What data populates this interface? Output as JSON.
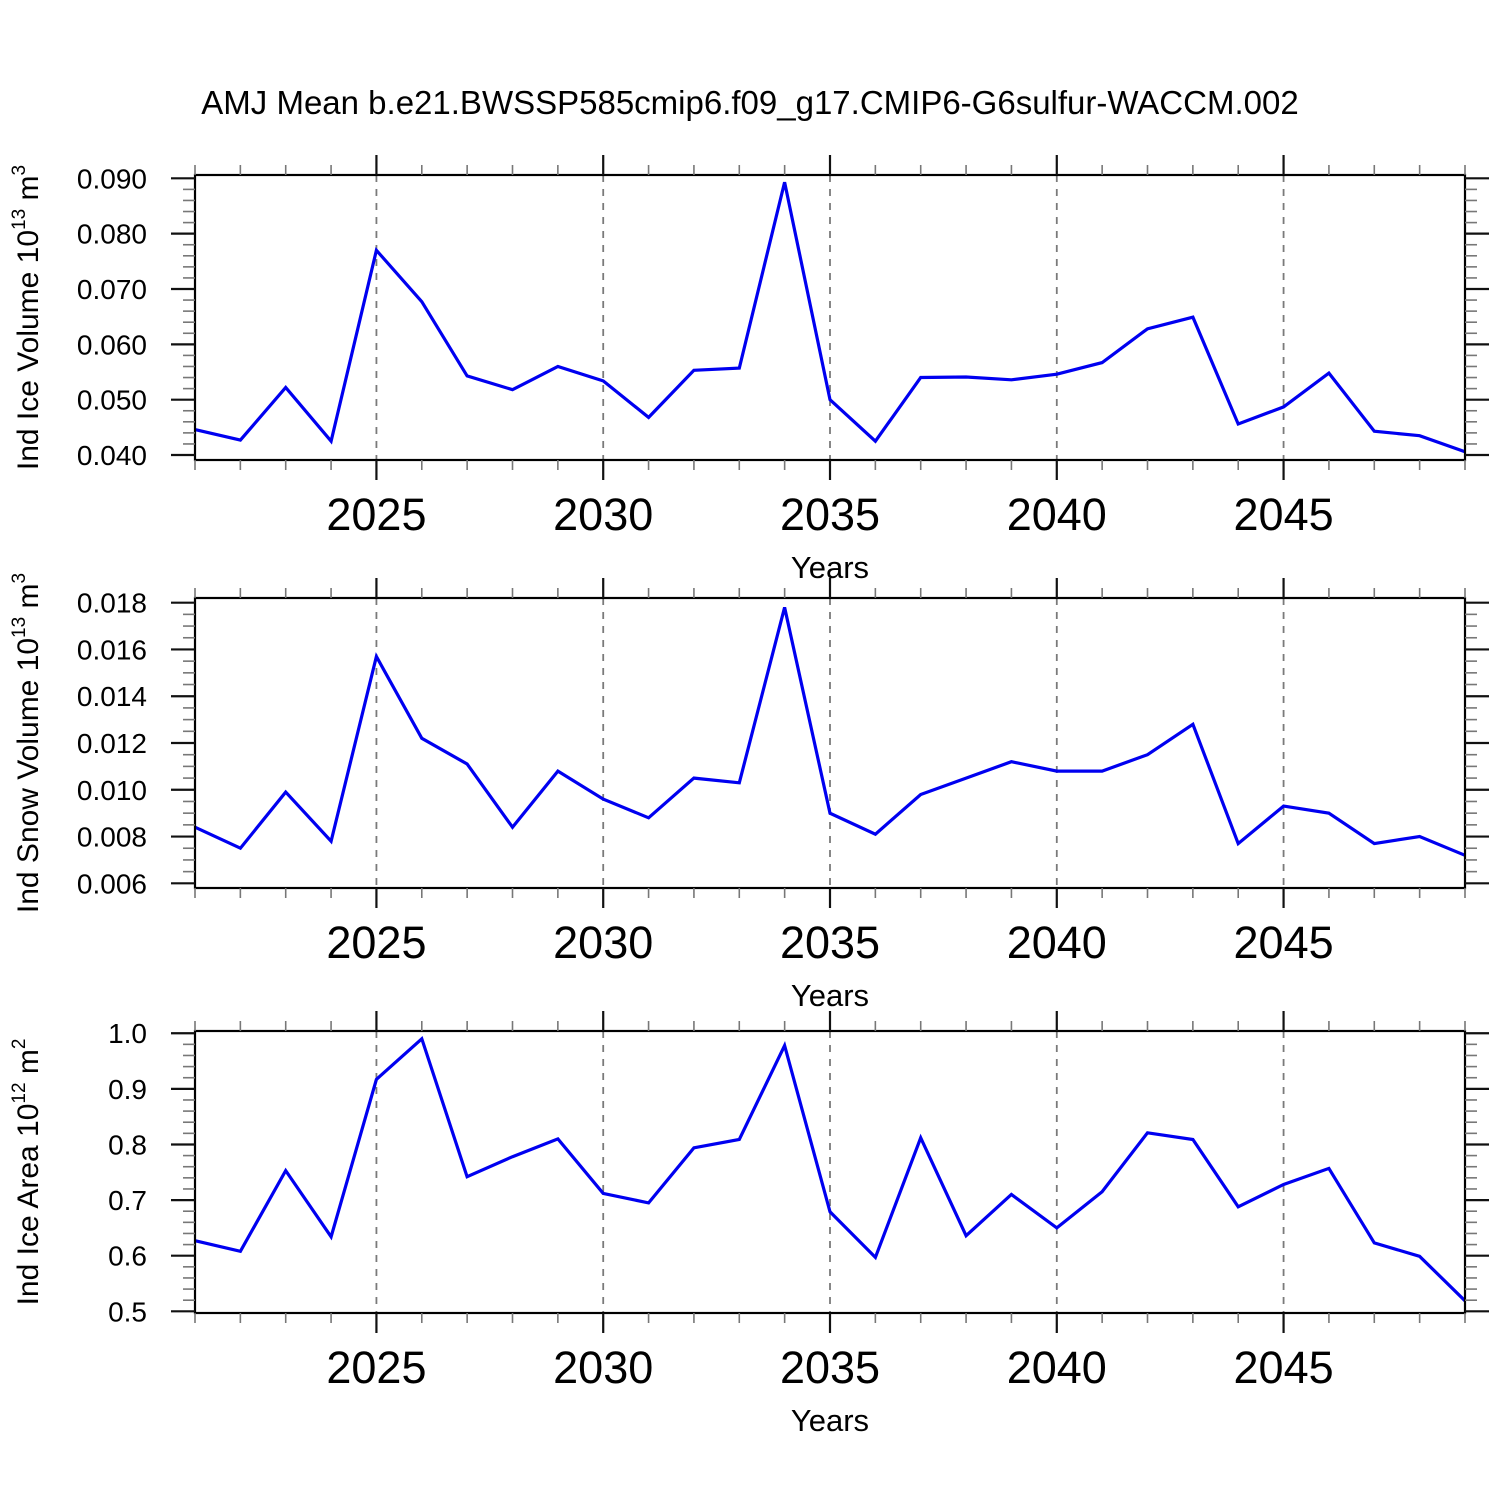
{
  "title": "AMJ Mean b.e21.BWSSP585cmip6.f09_g17.CMIP6-G6sulfur-WACCM.002",
  "colors": {
    "line": "#0000f0",
    "grid": "#7a7a7a",
    "frame": "#000000",
    "major_tick": "#111111",
    "minor_tick": "#777777",
    "text": "#000000",
    "background": "#ffffff"
  },
  "x_axis": {
    "label": "Years",
    "range": [
      2021,
      2049
    ],
    "major_ticks": [
      2025,
      2030,
      2035,
      2040,
      2045
    ],
    "major_tick_labels": [
      "2025",
      "2030",
      "2035",
      "2040",
      "2045"
    ],
    "minor_tick_step": 1,
    "grid": "dashed-vertical-at-major-ticks"
  },
  "years": [
    2021,
    2022,
    2023,
    2024,
    2025,
    2026,
    2027,
    2028,
    2029,
    2030,
    2031,
    2032,
    2033,
    2034,
    2035,
    2036,
    2037,
    2038,
    2039,
    2040,
    2041,
    2042,
    2043,
    2044,
    2045,
    2046,
    2047,
    2048,
    2049
  ],
  "chart_data": [
    {
      "type": "line",
      "name": "ind-ice-volume",
      "ylabel_text": "Ind Ice Volume 10^13 m^3",
      "ylabel_parts": [
        [
          "n",
          "Ind Ice Volume 10"
        ],
        [
          "s",
          "13"
        ],
        [
          "n",
          " m"
        ],
        [
          "s",
          "3"
        ]
      ],
      "ylim": [
        0.0391,
        0.0906
      ],
      "ytick_values": [
        0.04,
        0.05,
        0.06,
        0.07,
        0.08,
        0.09
      ],
      "ytick_labels": [
        "0.040",
        "0.050",
        "0.060",
        "0.070",
        "0.080",
        "0.090"
      ],
      "y_minor_step": 0.002,
      "values": [
        0.0446,
        0.0427,
        0.0522,
        0.0425,
        0.077,
        0.0677,
        0.0543,
        0.0518,
        0.056,
        0.0534,
        0.0468,
        0.0553,
        0.0557,
        0.0893,
        0.05,
        0.0425,
        0.054,
        0.0541,
        0.0536,
        0.0546,
        0.0567,
        0.0628,
        0.0649,
        0.0456,
        0.0487,
        0.0548,
        0.0443,
        0.0435,
        0.0406
      ]
    },
    {
      "type": "line",
      "name": "ind-snow-volume",
      "ylabel_text": "Ind Snow Volume 10^13 m^3",
      "ylabel_parts": [
        [
          "n",
          "Ind Snow Volume 10"
        ],
        [
          "s",
          "13"
        ],
        [
          "n",
          " m"
        ],
        [
          "s",
          "3"
        ]
      ],
      "ylim": [
        0.0058,
        0.0182
      ],
      "ytick_values": [
        0.006,
        0.008,
        0.01,
        0.012,
        0.014,
        0.016,
        0.018
      ],
      "ytick_labels": [
        "0.006",
        "0.008",
        "0.010",
        "0.012",
        "0.014",
        "0.016",
        "0.018"
      ],
      "y_minor_step": 0.0005,
      "values": [
        0.0084,
        0.0075,
        0.0099,
        0.0078,
        0.0157,
        0.0122,
        0.0111,
        0.0084,
        0.0108,
        0.0096,
        0.0088,
        0.0105,
        0.0103,
        0.0178,
        0.009,
        0.0081,
        0.0098,
        0.0105,
        0.0112,
        0.0108,
        0.0108,
        0.0115,
        0.0128,
        0.0077,
        0.0093,
        0.009,
        0.0077,
        0.008,
        0.0072
      ]
    },
    {
      "type": "line",
      "name": "ind-ice-area",
      "ylabel_text": "Ind Ice Area 10^12 m^2",
      "ylabel_parts": [
        [
          "n",
          "Ind Ice Area 10"
        ],
        [
          "s",
          "12"
        ],
        [
          "n",
          " m"
        ],
        [
          "s",
          "2"
        ]
      ],
      "ylim": [
        0.497,
        1.004
      ],
      "ytick_values": [
        0.5,
        0.6,
        0.7,
        0.8,
        0.9,
        1.0
      ],
      "ytick_labels": [
        "0.5",
        "0.6",
        "0.7",
        "0.8",
        "0.9",
        "1.0"
      ],
      "y_minor_step": 0.02,
      "values": [
        0.627,
        0.608,
        0.753,
        0.634,
        0.917,
        0.99,
        0.742,
        0.778,
        0.81,
        0.712,
        0.695,
        0.794,
        0.809,
        0.978,
        0.679,
        0.597,
        0.812,
        0.636,
        0.71,
        0.65,
        0.715,
        0.821,
        0.809,
        0.688,
        0.728,
        0.757,
        0.623,
        0.599,
        0.519
      ]
    }
  ]
}
